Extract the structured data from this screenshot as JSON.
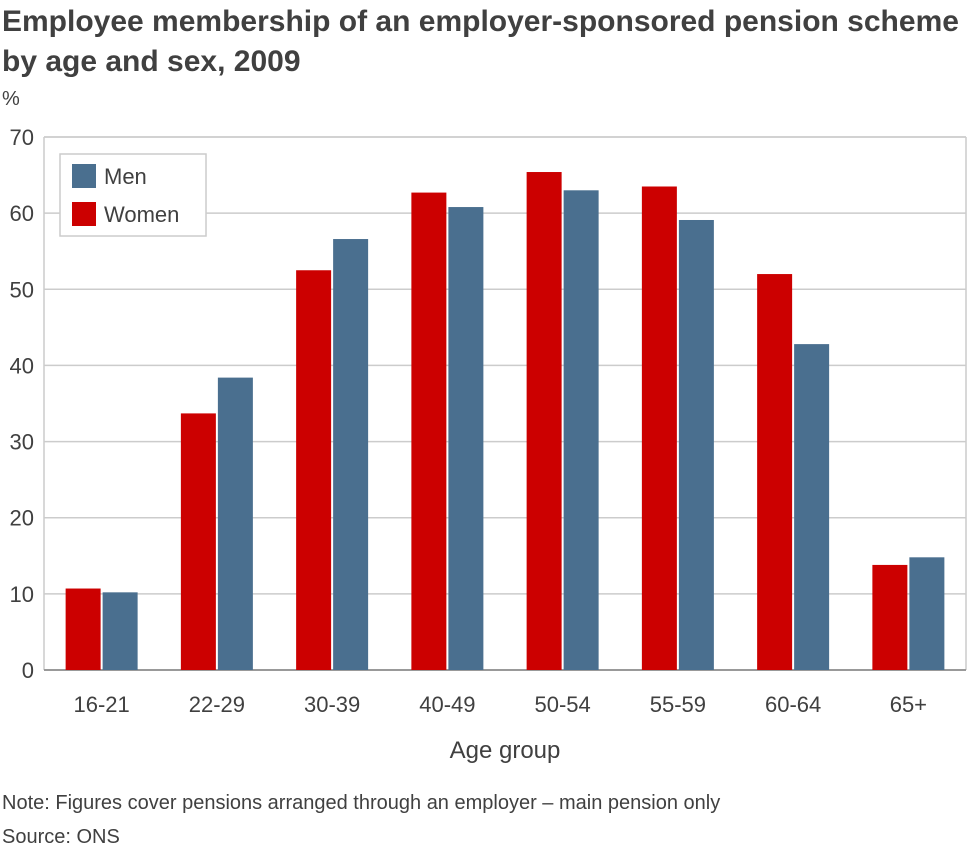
{
  "title": "Employee membership of an employer-sponsored pension scheme by age and sex, 2009",
  "unit_label": "%",
  "note": "Note: Figures cover pensions arranged through an employer – main pension only",
  "source": "Source: ONS",
  "colors": {
    "men": "#4a6f8f",
    "women": "#cc0000",
    "grid": "#cccccc",
    "axis": "#999999"
  },
  "chart_data": {
    "type": "bar",
    "title": "Employee membership of an employer-sponsored pension scheme by age and sex, 2009",
    "xlabel": "Age group",
    "ylabel": "%",
    "ylim": [
      0,
      70
    ],
    "yticks": [
      0,
      10,
      20,
      30,
      40,
      50,
      60,
      70
    ],
    "grid": true,
    "legend_position": "top-left",
    "categories": [
      "16-21",
      "22-29",
      "30-39",
      "40-49",
      "50-54",
      "55-59",
      "60-64",
      "65+"
    ],
    "series": [
      {
        "name": "Women",
        "color": "#cc0000",
        "values": [
          10.7,
          33.7,
          52.5,
          62.7,
          65.4,
          63.5,
          52.0,
          13.8
        ]
      },
      {
        "name": "Men",
        "color": "#4a6f8f",
        "values": [
          10.2,
          38.4,
          56.6,
          60.8,
          63.0,
          59.1,
          42.8,
          14.8
        ]
      }
    ],
    "legend": [
      "Men",
      "Women"
    ]
  }
}
